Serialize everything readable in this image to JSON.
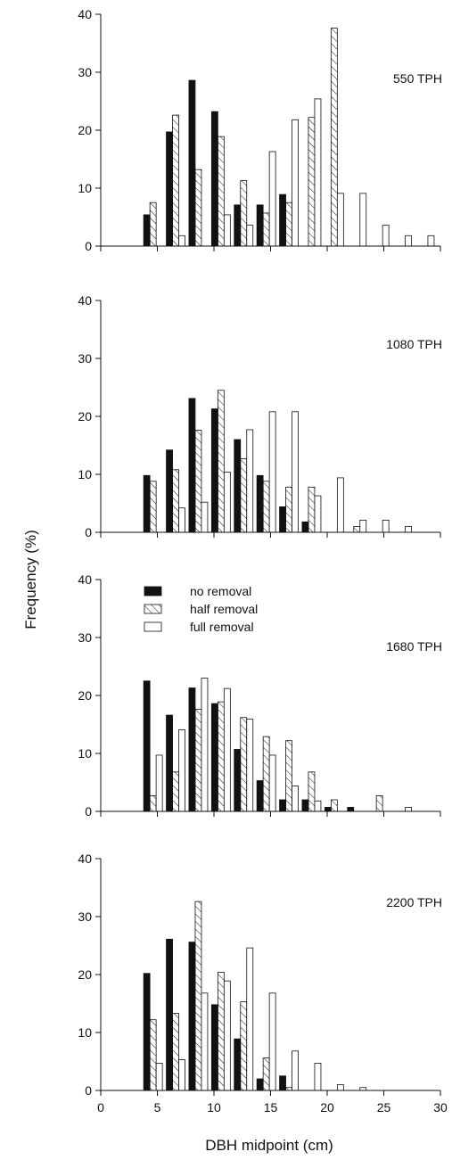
{
  "colors": {
    "ink": "#111111",
    "no_removal_fill": "#111111",
    "paper": "#ffffff"
  },
  "chart_data": {
    "type": "bar",
    "xlabel": "DBH midpoint (cm)",
    "ylabel": "Frequency (%)",
    "xlim": [
      0,
      30
    ],
    "ylim": [
      0,
      40
    ],
    "x_ticks": [
      0,
      5,
      10,
      15,
      20,
      25,
      30
    ],
    "y_ticks": [
      0,
      10,
      20,
      30,
      40
    ],
    "x_tick_labels_on": "bottom panel only",
    "grid": false,
    "legend": {
      "position": "upper-left of third panel",
      "entries": [
        {
          "label": "no removal",
          "style": "solid"
        },
        {
          "label": "half removal",
          "style": "hatched"
        },
        {
          "label": "full removal",
          "style": "open"
        }
      ]
    },
    "x": [
      4.5,
      6.5,
      8.5,
      10.5,
      12.5,
      14.5,
      16.5,
      18.5,
      20.5,
      22.5,
      24.5,
      26.5,
      28.5
    ],
    "panels": [
      {
        "label": "550 TPH",
        "series": [
          {
            "name": "no removal",
            "values": [
              5.4,
              19.7,
              28.6,
              23.2,
              7.1,
              7.1,
              8.9,
              0,
              0,
              0,
              0,
              0,
              0
            ]
          },
          {
            "name": "half removal",
            "values": [
              7.5,
              22.6,
              13.2,
              18.9,
              11.3,
              5.7,
              7.5,
              22.2,
              37.6,
              0,
              0,
              0,
              0
            ]
          },
          {
            "name": "full removal",
            "values": [
              0,
              1.8,
              0,
              5.4,
              3.6,
              16.3,
              21.8,
              25.4,
              9.1,
              9.1,
              3.6,
              1.8,
              1.8
            ]
          }
        ]
      },
      {
        "label": "1080 TPH",
        "series": [
          {
            "name": "no removal",
            "values": [
              9.8,
              14.2,
              23.1,
              21.3,
              16.0,
              9.8,
              4.4,
              1.8,
              0,
              0,
              0,
              0,
              0
            ]
          },
          {
            "name": "half removal",
            "values": [
              8.8,
              10.8,
              17.6,
              24.5,
              12.7,
              8.8,
              7.8,
              7.8,
              0,
              1.0,
              0,
              0,
              0
            ]
          },
          {
            "name": "full removal",
            "values": [
              0,
              4.2,
              5.2,
              10.4,
              17.7,
              20.8,
              20.8,
              6.3,
              9.4,
              2.1,
              2.1,
              1.0,
              0
            ]
          }
        ]
      },
      {
        "label": "1680 TPH",
        "series": [
          {
            "name": "no removal",
            "values": [
              22.5,
              16.6,
              21.3,
              18.6,
              10.7,
              5.3,
              2.0,
              2.0,
              0.7,
              0.7,
              0,
              0,
              0
            ]
          },
          {
            "name": "half removal",
            "values": [
              2.7,
              6.8,
              17.6,
              18.9,
              16.2,
              12.9,
              12.2,
              6.8,
              2.0,
              0,
              2.7,
              0,
              0
            ]
          },
          {
            "name": "full removal",
            "values": [
              9.7,
              14.1,
              23.0,
              21.2,
              15.9,
              9.7,
              4.4,
              1.8,
              0,
              0,
              0,
              0.7,
              0
            ]
          }
        ]
      },
      {
        "label": "2200 TPH",
        "series": [
          {
            "name": "no removal",
            "values": [
              20.2,
              26.1,
              25.6,
              14.8,
              8.9,
              2.0,
              2.5,
              0,
              0,
              0,
              0,
              0,
              0
            ]
          },
          {
            "name": "half removal",
            "values": [
              12.2,
              13.3,
              32.6,
              20.4,
              15.3,
              5.6,
              0.5,
              0,
              0,
              0,
              0,
              0,
              0
            ]
          },
          {
            "name": "full removal",
            "values": [
              4.7,
              5.3,
              16.8,
              18.9,
              24.6,
              16.8,
              6.8,
              4.7,
              1.0,
              0.5,
              0,
              0,
              0
            ]
          }
        ]
      }
    ]
  }
}
